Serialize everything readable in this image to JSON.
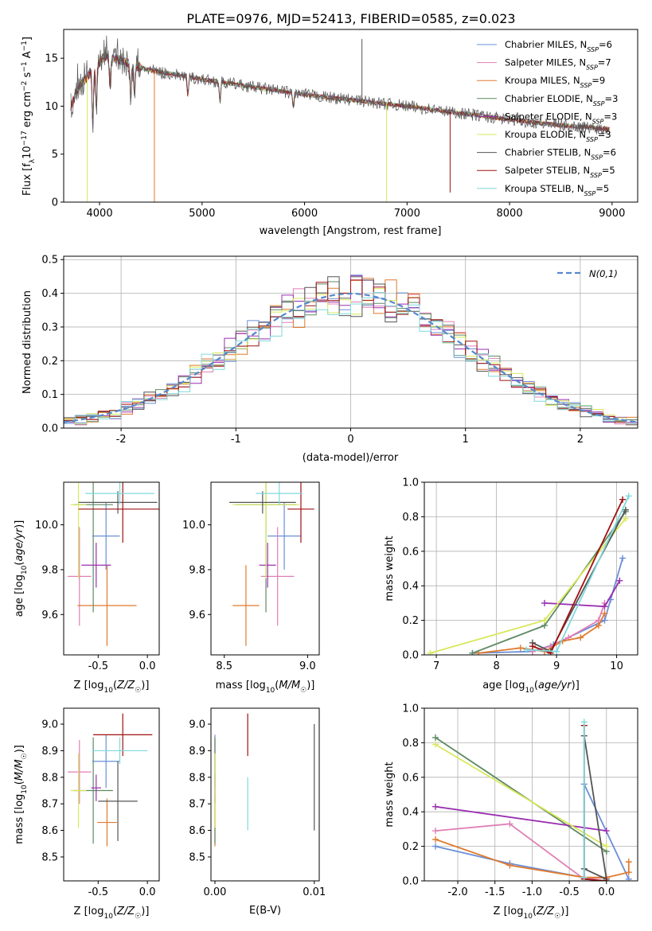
{
  "figure_title": "PLATE=0976, MJD=52413, FIBERID=0585, z=0.023",
  "colors": {
    "chabrier_miles": "#6a8fd8",
    "salpeter_miles": "#e07fb5",
    "kroupa_miles": "#e07a2e",
    "chabrier_elodie": "#5f8a63",
    "salpeter_elodie": "#9a2fb0",
    "kroupa_elodie": "#d8e85a",
    "chabrier_stelib": "#555555",
    "salpeter_stelib": "#a01010",
    "kroupa_stelib": "#7fd8dc",
    "gaussian": "#5588cc",
    "grid": "#b0b0b0"
  },
  "chart_data": [
    {
      "id": "spectrum",
      "type": "line",
      "title": "PLATE=0976, MJD=52413, FIBERID=0585, z=0.023",
      "xlabel": "wavelength [Angstrom, rest frame]",
      "ylabel": "Flux [f_λ10^-17 erg cm^-2 s^-1 A^-1]",
      "xlim": [
        3650,
        9250
      ],
      "ylim": [
        0,
        18
      ],
      "xticks": [
        "4000",
        "5000",
        "6000",
        "7000",
        "8000",
        "9000"
      ],
      "yticks": [
        "0",
        "5",
        "10",
        "15"
      ],
      "grid": false,
      "legend_position": "top-right",
      "series": [
        {
          "name": "Chabrier MILES, N_SSP=6"
        },
        {
          "name": "Salpeter MILES, N_SSP=7"
        },
        {
          "name": "Kroupa MILES, N_SSP=9"
        },
        {
          "name": "Chabrier ELODIE, N_SSP=3"
        },
        {
          "name": "Salpeter ELODIE, N_SSP=3"
        },
        {
          "name": "Kroupa ELODIE, N_SSP=3"
        },
        {
          "name": "Chabrier STELIB, N_SSP=6"
        },
        {
          "name": "Salpeter STELIB, N_SSP=5"
        },
        {
          "name": "Kroupa STELIB, N_SSP=5"
        }
      ],
      "continuum": {
        "x": [
          3700,
          3800,
          3950,
          4050,
          4200,
          4400,
          4600,
          4800,
          5000,
          5500,
          6000,
          6500,
          7000,
          7500,
          8000,
          8500,
          9000
        ],
        "y": [
          9.5,
          12.0,
          14.0,
          15.2,
          14.8,
          14.0,
          13.5,
          13.2,
          12.8,
          12.0,
          11.2,
          10.6,
          10.0,
          9.3,
          8.6,
          8.0,
          7.6
        ]
      },
      "absorption_lines": [
        {
          "x": 3934,
          "depth": 5.5
        },
        {
          "x": 3969,
          "depth": 4.5
        },
        {
          "x": 4102,
          "depth": 3.0
        },
        {
          "x": 4305,
          "depth": 3.5
        },
        {
          "x": 4340,
          "depth": 3.0
        },
        {
          "x": 4861,
          "depth": 2.0
        },
        {
          "x": 5175,
          "depth": 2.0
        },
        {
          "x": 5890,
          "depth": 1.5
        }
      ],
      "spikes": [
        {
          "x": 3880,
          "y": 0,
          "series": "Kroupa ELODIE, N_SSP=3"
        },
        {
          "x": 4535,
          "y": 0,
          "series": "Kroupa MILES, N_SSP=9"
        },
        {
          "x": 6800,
          "y": 0,
          "series": "Kroupa ELODIE, N_SSP=3"
        },
        {
          "x": 7420,
          "y": 1,
          "series": "Salpeter STELIB, N_SSP=5"
        },
        {
          "x": 6560,
          "y": 17,
          "series": "Chabrier STELIB, N_SSP=6"
        }
      ]
    },
    {
      "id": "residuals",
      "type": "line",
      "xlabel": "(data-model)/error",
      "ylabel": "Normed distribution",
      "xlim": [
        -2.5,
        2.5
      ],
      "ylim": [
        0,
        0.51
      ],
      "xticks": [
        "-2",
        "-1",
        "0",
        "1",
        "2"
      ],
      "yticks": [
        "0.0",
        "0.1",
        "0.2",
        "0.3",
        "0.4",
        "0.5"
      ],
      "grid": true,
      "legend_position": "top-right",
      "legend": [
        "N(0,1)"
      ],
      "gaussian": {
        "mean": 0,
        "sigma": 1
      },
      "bin_width": 0.1
    },
    {
      "id": "z_age",
      "type": "scatter",
      "xlabel": "Z [log10(Z/Z☉)]",
      "ylabel": "age [log10(age/yr)]",
      "xlim": [
        -0.85,
        0.12
      ],
      "ylim": [
        9.42,
        10.19
      ],
      "xticks": [
        "-0.5",
        "0.0"
      ],
      "yticks": [
        "9.6",
        "9.8",
        "10.0"
      ],
      "grid": false,
      "x_values": [
        -0.42,
        -0.69,
        -0.41,
        -0.55,
        -0.52,
        -0.7,
        -0.3,
        -0.25,
        -0.28
      ],
      "y_values": [
        9.95,
        9.77,
        9.64,
        10.09,
        9.82,
        10.09,
        10.1,
        10.07,
        10.14
      ],
      "x_err": [
        0.14,
        0.12,
        0.3,
        0.2,
        0.15,
        0.08,
        0.4,
        0.45,
        0.35
      ],
      "y_err": [
        0.15,
        0.22,
        0.18,
        0.48,
        0.1,
        0.33,
        0.05,
        0.15,
        0.05
      ]
    },
    {
      "id": "mass_age",
      "type": "scatter",
      "xlabel": "mass [log10(M/M☉)]",
      "ylabel": "",
      "xlim": [
        8.42,
        9.07
      ],
      "ylim": [
        9.42,
        10.19
      ],
      "xticks": [
        "8.5",
        "9.0"
      ],
      "yticks": [
        "9.6",
        "9.8",
        "10.0"
      ],
      "grid": false,
      "x_values": [
        8.86,
        8.82,
        8.63,
        8.75,
        8.76,
        8.75,
        8.73,
        8.96,
        8.83
      ],
      "y_values": [
        9.95,
        9.77,
        9.64,
        10.09,
        9.82,
        10.09,
        10.1,
        10.07,
        10.14
      ],
      "x_err": [
        0.1,
        0.1,
        0.08,
        0.18,
        0.05,
        0.2,
        0.2,
        0.08,
        0.14
      ],
      "y_err": [
        0.15,
        0.22,
        0.18,
        0.48,
        0.1,
        0.33,
        0.05,
        0.15,
        0.05
      ]
    },
    {
      "id": "age_weight",
      "type": "line",
      "xlabel": "age [log10(age/yr)]",
      "ylabel": "mass weight",
      "xlim": [
        6.8,
        10.35
      ],
      "ylim": [
        0,
        1.0
      ],
      "xticks": [
        "7",
        "8",
        "9",
        "10"
      ],
      "yticks": [
        "0.0",
        "0.2",
        "0.4",
        "0.6",
        "0.8",
        "1.0"
      ],
      "grid": true,
      "series": [
        {
          "x": [
            7.6,
            8.6,
            8.95,
            9.8,
            9.9,
            10.1
          ],
          "y": [
            0.01,
            0.02,
            0.06,
            0.2,
            0.32,
            0.56
          ]
        },
        {
          "x": [
            8.6,
            8.9,
            9.2,
            9.7,
            9.8
          ],
          "y": [
            0.02,
            0.05,
            0.1,
            0.2,
            0.3
          ]
        },
        {
          "x": [
            7.7,
            8.4,
            8.8,
            9.1,
            9.4,
            9.7,
            9.8
          ],
          "y": [
            0.01,
            0.04,
            0.02,
            0.08,
            0.1,
            0.17,
            0.24
          ]
        },
        {
          "x": [
            7.6,
            8.8,
            10.15
          ],
          "y": [
            0.01,
            0.17,
            0.83
          ]
        },
        {
          "x": [
            8.8,
            9.8,
            10.05
          ],
          "y": [
            0.3,
            0.28,
            0.43
          ]
        },
        {
          "x": [
            6.9,
            8.8,
            10.15
          ],
          "y": [
            0.01,
            0.2,
            0.79
          ]
        },
        {
          "x": [
            8.6,
            8.9,
            10.15
          ],
          "y": [
            0.07,
            0.02,
            0.84
          ]
        },
        {
          "x": [
            8.6,
            8.9,
            10.1
          ],
          "y": [
            0.05,
            0.01,
            0.9
          ]
        },
        {
          "x": [
            8.5,
            9.0,
            10.2
          ],
          "y": [
            0.03,
            0.02,
            0.92
          ]
        }
      ]
    },
    {
      "id": "z_mass",
      "type": "scatter",
      "xlabel": "Z [log10(Z/Z☉)]",
      "ylabel": "mass [log10(M/M☉)]",
      "xlim": [
        -0.85,
        0.12
      ],
      "ylim": [
        8.41,
        9.06
      ],
      "xticks": [
        "-0.5",
        "0.0"
      ],
      "yticks": [
        "8.5",
        "8.6",
        "8.7",
        "8.8",
        "8.9",
        "9.0"
      ],
      "grid": false,
      "x_values": [
        -0.42,
        -0.69,
        -0.41,
        -0.55,
        -0.52,
        -0.7,
        -0.3,
        -0.25,
        -0.28
      ],
      "y_values": [
        8.86,
        8.82,
        8.63,
        8.75,
        8.76,
        8.75,
        8.71,
        8.96,
        8.9
      ],
      "x_err": [
        0.14,
        0.12,
        0.1,
        0.2,
        0.05,
        0.08,
        0.2,
        0.3,
        0.28
      ],
      "y_err": [
        0.1,
        0.12,
        0.09,
        0.2,
        0.05,
        0.14,
        0.15,
        0.08,
        0.05
      ]
    },
    {
      "id": "ebv_mass",
      "type": "scatter",
      "xlabel": "E(B-V)",
      "ylabel": "",
      "xlim": [
        -0.0004,
        0.0105
      ],
      "ylim": [
        8.41,
        9.06
      ],
      "xticks": [
        "0.00",
        "0.01"
      ],
      "yticks": [
        "8.5",
        "8.6",
        "8.7",
        "8.8",
        "8.9",
        "9.0"
      ],
      "grid": false,
      "x_values": [
        0.0,
        0.0,
        0.0,
        0.0,
        0.0,
        0.0,
        0.01,
        0.0033,
        0.0033
      ],
      "y_values": [
        8.86,
        8.82,
        8.63,
        8.75,
        8.76,
        8.75,
        8.8,
        8.96,
        8.7
      ],
      "y_err": [
        0.1,
        0.12,
        0.09,
        0.2,
        0.05,
        0.14,
        0.2,
        0.08,
        0.1
      ]
    },
    {
      "id": "z_weight",
      "type": "line",
      "xlabel": "Z [log10(Z/Z☉)]",
      "ylabel": "mass weight",
      "xlim": [
        -2.45,
        0.42
      ],
      "ylim": [
        0,
        1.0
      ],
      "xticks": [
        "-2.0",
        "-1.5",
        "-1.0",
        "-0.5",
        "0.0"
      ],
      "yticks": [
        "0.0",
        "0.2",
        "0.4",
        "0.6",
        "0.8",
        "1.0"
      ],
      "grid": true,
      "series": [
        {
          "x": [
            -2.3,
            -1.3,
            -0.3,
            -0.3,
            0.3
          ],
          "y": [
            0.2,
            0.1,
            0.02,
            0.56,
            0.01
          ]
        },
        {
          "x": [
            -2.3,
            -1.3,
            -0.3,
            0.0
          ],
          "y": [
            0.29,
            0.33,
            0.01,
            0.02
          ]
        },
        {
          "x": [
            -2.3,
            -1.3,
            -0.3,
            0.0,
            0.3,
            0.3
          ],
          "y": [
            0.24,
            0.09,
            0.02,
            0.02,
            0.05,
            0.11
          ]
        },
        {
          "x": [
            -2.3,
            0.0
          ],
          "y": [
            0.83,
            0.17
          ]
        },
        {
          "x": [
            -2.3,
            0.0
          ],
          "y": [
            0.43,
            0.29
          ]
        },
        {
          "x": [
            -2.3,
            0.0
          ],
          "y": [
            0.79,
            0.2
          ]
        },
        {
          "x": [
            -0.3,
            0.0,
            -0.3
          ],
          "y": [
            0.84,
            0.01,
            0.07
          ]
        },
        {
          "x": [
            -0.3,
            -0.3,
            0.0
          ],
          "y": [
            0.9,
            0.01,
            0.0
          ]
        },
        {
          "x": [
            -0.3,
            -0.3
          ],
          "y": [
            0.92,
            0.02
          ]
        }
      ]
    }
  ]
}
